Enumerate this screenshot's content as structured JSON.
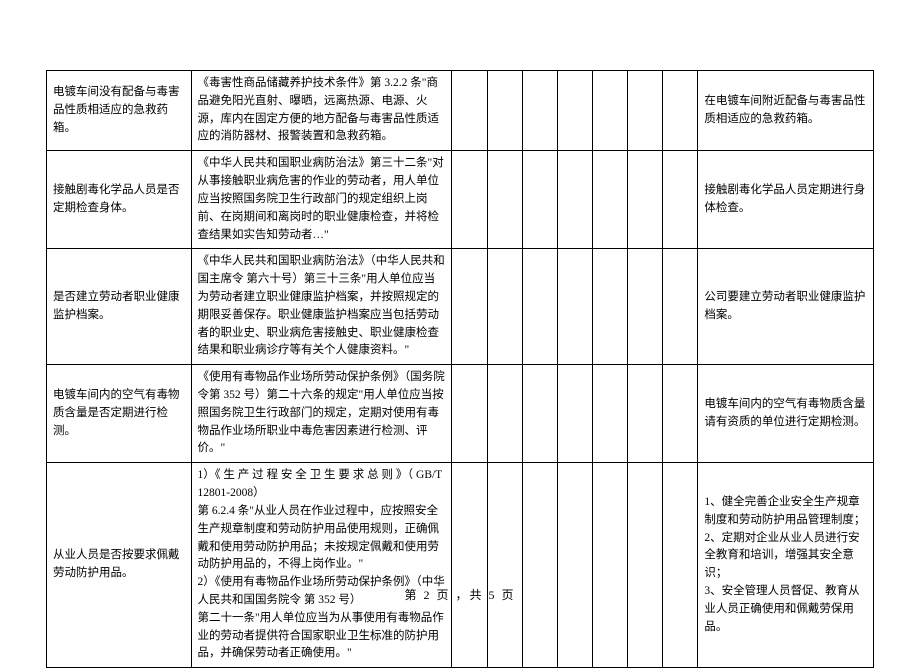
{
  "footer": "第 2 页 ，共 5 页",
  "rows": [
    {
      "c1": "电镀车间没有配备与毒害品性质相适应的急救药箱。",
      "c2": "《毒害性商品储藏养护技术条件》第 3.2.2 条\"商品避免阳光直射、曝晒，远离热源、电源、火源，库内在固定方便的地方配备与毒害品性质适应的消防器材、报警装置和急救药箱。",
      "c10": "在电镀车间附近配备与毒害品性质相适应的急救药箱。"
    },
    {
      "c1": "接触剧毒化学品人员是否定期检查身体。",
      "c2": "《中华人民共和国职业病防治法》第三十二条\"对从事接触职业病危害的作业的劳动者，用人单位应当按照国务院卫生行政部门的规定组织上岗前、在岗期间和离岗时的职业健康检查，并将检查结果如实告知劳动者…\"",
      "c10": "接触剧毒化学品人员定期进行身体检查。"
    },
    {
      "c1": "是否建立劳动者职业健康监护档案。",
      "c2": "《中华人民共和国职业病防治法》（中华人民共和国主席令 第六十号）第三十三条\"用人单位应当为劳动者建立职业健康监护档案，并按照规定的期限妥善保存。职业健康监护档案应当包括劳动者的职业史、职业病危害接触史、职业健康检查结果和职业病诊疗等有关个人健康资料。\"",
      "c10": "公司要建立劳动者职业健康监护档案。"
    },
    {
      "c1": "电镀车间内的空气有毒物质含量是否定期进行检测。",
      "c2": "《使用有毒物品作业场所劳动保护条例》（国务院令第 352 号）第二十六条的规定\"用人单位应当按照国务院卫生行政部门的规定，定期对使用有毒物品作业场所职业中毒危害因素进行检测、评价。\"",
      "c10": "电镀车间内的空气有毒物质含量请有资质的单位进行定期检测。"
    },
    {
      "c1": "从业人员是否按要求佩戴劳动防护用品。",
      "c2": "1）《 生 产 过 程 安 全 卫 生 要 求 总 则 》（ GB/T 12801-2008）\n第 6.2.4 条\"从业人员在作业过程中，应按照安全生产规章制度和劳动防护用品使用规则，正确佩戴和使用劳动防护用品；未按规定佩戴和使用劳动防护用品的，不得上岗作业。\"\n2）《使用有毒物品作业场所劳动保护条例》（中华人民共和国国务院令 第 352 号）\n第二十一条\"用人单位应当为从事使用有毒物品作业的劳动者提供符合国家职业卫生标准的防护用品，并确保劳动者正确使用。\"",
      "c10": "1、健全完善企业安全生产规章制度和劳动防护用品管理制度；\n2、定期对企业从业人员进行安全教育和培训，增强其安全意识；\n3、安全管理人员督促、教育从业人员正确使用和佩戴劳保用品。"
    }
  ]
}
